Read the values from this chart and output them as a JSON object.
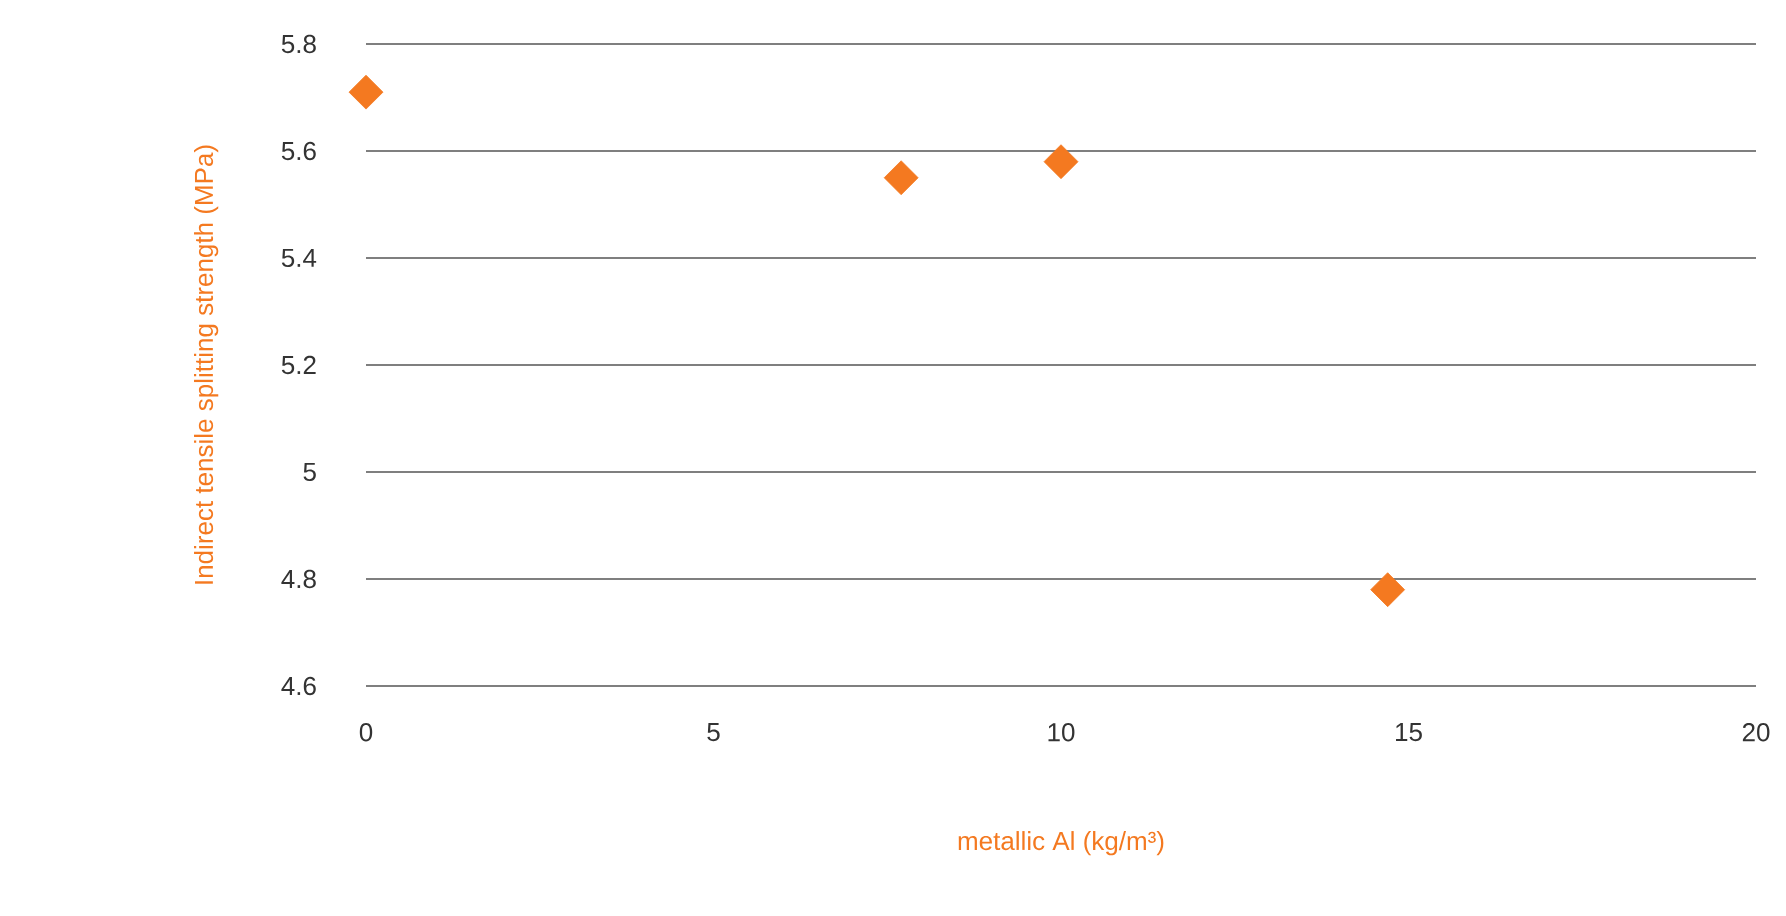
{
  "chart_data": {
    "type": "scatter",
    "xlabel": "metallic Al (kg/m³)",
    "ylabel": "Indirect tensile splitting strength (MPa)",
    "x": [
      0,
      7.7,
      10,
      14.7
    ],
    "series": [
      {
        "color": "#f47920",
        "values": [
          5.71,
          5.55,
          5.58,
          4.78
        ]
      }
    ],
    "marker": "diamond",
    "xlim": [
      0,
      20
    ],
    "ylim": [
      4.6,
      5.8
    ],
    "xticks": [
      0,
      5,
      10,
      15,
      20
    ],
    "yticks": [
      4.6,
      4.8,
      5,
      5.2,
      5.4,
      5.6,
      5.8
    ],
    "grid": "y"
  }
}
